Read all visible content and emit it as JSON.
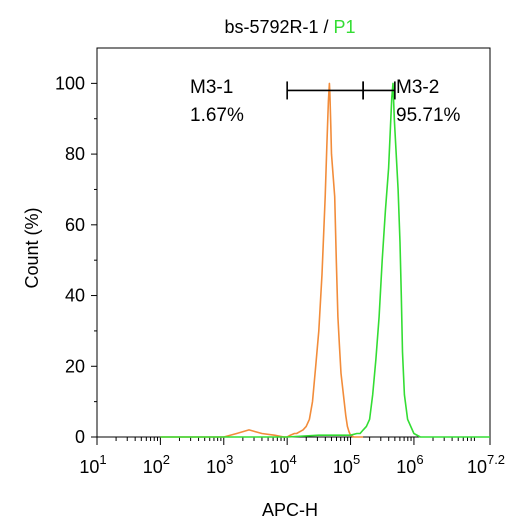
{
  "chart_data": {
    "type": "line",
    "title_parts": [
      {
        "text": "bs-5792R-1 / ",
        "color": "#000000"
      },
      {
        "text": "P1",
        "color": "#33dd33"
      }
    ],
    "xlabel": "APC-H",
    "ylabel": "Count  (%)",
    "x_scale": "log10",
    "xlim": [
      10,
      15848932
    ],
    "ylim": [
      0,
      110
    ],
    "x_ticks": [
      {
        "base": "10",
        "exp": "1",
        "value": 10
      },
      {
        "base": "10",
        "exp": "2",
        "value": 100
      },
      {
        "base": "10",
        "exp": "3",
        "value": 1000
      },
      {
        "base": "10",
        "exp": "4",
        "value": 10000
      },
      {
        "base": "10",
        "exp": "5",
        "value": 100000
      },
      {
        "base": "10",
        "exp": "6",
        "value": 1000000
      },
      {
        "base": "10",
        "exp": "7.2",
        "value": 15848932
      }
    ],
    "y_ticks": [
      "0",
      "20",
      "40",
      "60",
      "80",
      "100"
    ],
    "gates": [
      {
        "name": "M3-1",
        "percent": "1.67%",
        "x_range": [
          10000,
          158000
        ]
      },
      {
        "name": "M3-2",
        "percent": "95.71%",
        "x_range": [
          158000,
          500000
        ]
      }
    ],
    "gate_y": 98,
    "series": [
      {
        "color": "#f28c3a",
        "x": [
          100,
          1000,
          1600,
          2500,
          4000,
          6300,
          8900,
          10000,
          11200,
          13000,
          14100,
          15800,
          17800,
          20000,
          22400,
          25100,
          28200,
          31600,
          35500,
          39800,
          42200,
          44700,
          46400,
          47300,
          48800,
          50100,
          53100,
          56200,
          59600,
          63100,
          66800,
          70800,
          75000,
          79400,
          84100,
          89100,
          94400,
          100000,
          112200,
          158000
        ],
        "y": [
          0,
          0,
          1,
          2,
          1,
          0.5,
          0,
          0,
          0.5,
          1,
          1,
          1.5,
          2,
          3,
          5,
          10,
          20,
          30,
          46,
          68,
          82,
          95,
          100,
          97,
          88,
          80,
          74,
          68,
          50,
          34,
          26,
          18,
          14,
          10,
          6,
          3,
          1.5,
          0.5,
          0,
          0
        ]
      },
      {
        "color": "#33dd33",
        "x": [
          100,
          10000,
          31600,
          63100,
          100000,
          125900,
          141300,
          158500,
          177800,
          199500,
          223900,
          251200,
          281800,
          316200,
          354800,
          398100,
          426600,
          446700,
          467700,
          489800,
          524800,
          562300,
          602600,
          631000,
          661000,
          707900,
          794300,
          1000000,
          1258900,
          15848932
        ],
        "y": [
          0,
          0,
          0.5,
          0.5,
          0.5,
          1,
          1,
          2,
          3,
          5,
          12,
          22,
          34,
          50,
          64,
          76,
          88,
          96,
          100,
          90,
          80,
          70,
          55,
          40,
          24,
          12,
          5,
          1,
          0,
          0
        ]
      }
    ]
  }
}
